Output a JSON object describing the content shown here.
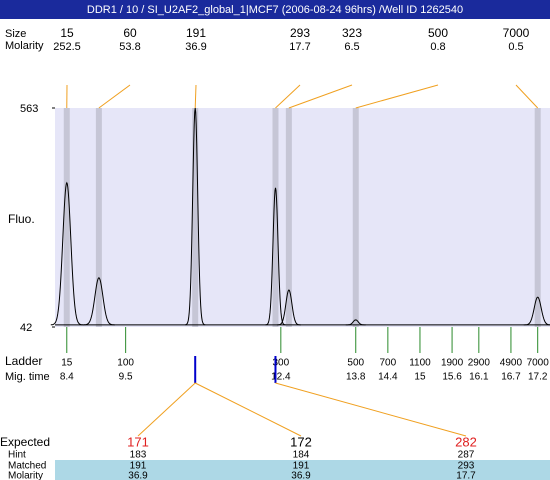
{
  "header": {
    "title": "DDR1 / 10 / SI_U2AF2_global_1|MCF7 (2006-08-24 96hrs) /Well ID 1262540"
  },
  "chart_data": {
    "type": "electropherogram",
    "y_label": "Fluo.",
    "xlim": [
      8.18,
      17.43
    ],
    "ylim": [
      42,
      563
    ],
    "yticks": [
      42,
      563
    ],
    "baseline": 47,
    "peaks": {
      "label": "Size",
      "molarity_label": "Molarity",
      "sizes": [
        15,
        60,
        191,
        293,
        323,
        500,
        7000
      ],
      "molarity": [
        252.5,
        53.8,
        36.9,
        17.7,
        6.5,
        0.8,
        0.5
      ],
      "x": [
        8.4,
        9.0,
        10.8,
        12.3,
        12.55,
        13.8,
        17.2
      ],
      "values": [
        385,
        159,
        563,
        373,
        130,
        59,
        113
      ]
    },
    "ladder": {
      "label": "Ladder",
      "time_label": "Mig. time",
      "sizes": [
        15,
        100,
        300,
        500,
        700,
        1100,
        1900,
        2900,
        4900,
        7000
      ],
      "x": [
        8.4,
        9.5,
        12.4,
        13.8,
        14.4,
        15,
        15.6,
        16.1,
        16.7,
        17.2
      ]
    },
    "matches": {
      "x": [
        10.8,
        12.3
      ]
    }
  },
  "expected_table": {
    "row_labels": [
      "Expected",
      "Hint",
      "Matched",
      "Molarity"
    ],
    "expected": [
      171,
      172,
      282
    ],
    "expected_colors": [
      "#e02020",
      "#000000",
      "#e02020"
    ],
    "hint": [
      183,
      184,
      287
    ],
    "matched": [
      191,
      191,
      293
    ],
    "molarity": [
      36.9,
      36.9,
      17.7
    ]
  }
}
